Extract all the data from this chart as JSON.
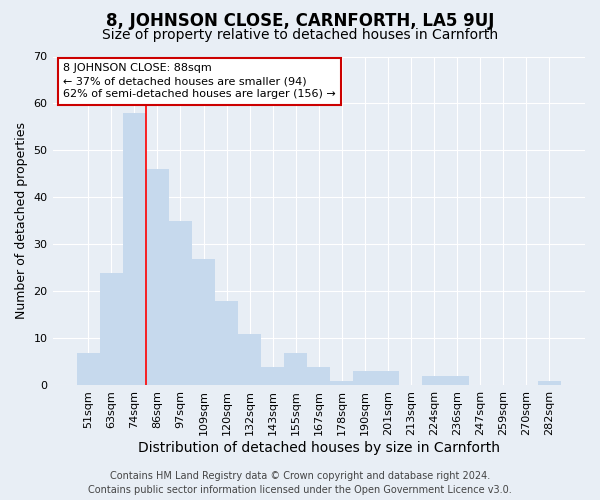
{
  "title": "8, JOHNSON CLOSE, CARNFORTH, LA5 9UJ",
  "subtitle": "Size of property relative to detached houses in Carnforth",
  "xlabel": "Distribution of detached houses by size in Carnforth",
  "ylabel": "Number of detached properties",
  "categories": [
    "51sqm",
    "63sqm",
    "74sqm",
    "86sqm",
    "97sqm",
    "109sqm",
    "120sqm",
    "132sqm",
    "143sqm",
    "155sqm",
    "167sqm",
    "178sqm",
    "190sqm",
    "201sqm",
    "213sqm",
    "224sqm",
    "236sqm",
    "247sqm",
    "259sqm",
    "270sqm",
    "282sqm"
  ],
  "values": [
    7,
    24,
    58,
    46,
    35,
    27,
    18,
    11,
    4,
    7,
    4,
    1,
    3,
    3,
    0,
    2,
    2,
    0,
    0,
    0,
    1
  ],
  "bar_color": "#c6d9ed",
  "bar_edgecolor": "#c6d9ed",
  "ylim": [
    0,
    70
  ],
  "yticks": [
    0,
    10,
    20,
    30,
    40,
    50,
    60,
    70
  ],
  "red_line_index": 3,
  "annotation_text": "8 JOHNSON CLOSE: 88sqm\n← 37% of detached houses are smaller (94)\n62% of semi-detached houses are larger (156) →",
  "annotation_box_color": "#ffffff",
  "annotation_box_edgecolor": "#cc0000",
  "footer_line1": "Contains HM Land Registry data © Crown copyright and database right 2024.",
  "footer_line2": "Contains public sector information licensed under the Open Government Licence v3.0.",
  "background_color": "#e8eef5",
  "plot_background_color": "#e8eef5",
  "grid_color": "#ffffff",
  "title_fontsize": 12,
  "subtitle_fontsize": 10,
  "tick_fontsize": 8,
  "ylabel_fontsize": 9,
  "xlabel_fontsize": 10,
  "footer_fontsize": 7
}
